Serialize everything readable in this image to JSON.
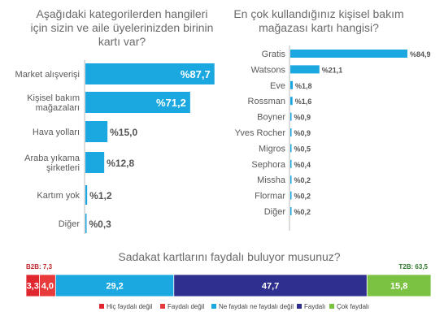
{
  "chart_data": [
    {
      "type": "bar",
      "orientation": "horizontal",
      "title_lines": [
        "Aşağıdaki kategorilerden hangileri",
        "için sizin ve aile üyelerinizden birinin",
        "kartı var?"
      ],
      "categories": [
        [
          "Market alışverişi"
        ],
        [
          "Kişisel bakım",
          "mağazaları"
        ],
        [
          "Hava yolları"
        ],
        [
          "Araba yıkama",
          "şirketleri"
        ],
        [
          "Kartım yok"
        ],
        [
          "Diğer"
        ]
      ],
      "values": [
        87.7,
        71.2,
        15.0,
        12.8,
        1.2,
        0.3
      ],
      "labels": [
        "%87,7",
        "%71,2",
        "%15,0",
        "%12,8",
        "%1,2",
        "%0,3"
      ],
      "xlim": [
        0,
        100
      ],
      "color": "#1ba8e0"
    },
    {
      "type": "bar",
      "orientation": "horizontal",
      "title_lines": [
        "En çok kullandığınız kişisel bakım",
        "mağazası kartı hangisi?"
      ],
      "categories": [
        "Gratis",
        "Watsons",
        "Eve",
        "Rossman",
        "Boyner",
        "Yves Rocher",
        "Migros",
        "Sephora",
        "Missha",
        "Flormar",
        "Diğer"
      ],
      "values": [
        84.9,
        21.1,
        1.8,
        1.6,
        0.9,
        0.9,
        0.5,
        0.4,
        0.2,
        0.2,
        0.2
      ],
      "labels": [
        "%84,9",
        "%21,1",
        "%1,8",
        "%1,6",
        "%0,9",
        "%0,9",
        "%0,5",
        "%0,4",
        "%0,2",
        "%0,2",
        "%0,2"
      ],
      "xlim": [
        0,
        100
      ],
      "color": "#1ba8e0"
    },
    {
      "type": "stacked_bar",
      "title": "Sadakat kartlarını faydalı buluyor musunuz?",
      "b2b_label": "B2B: 7,3",
      "t2b_label": "T2B: 63,5",
      "segments": [
        {
          "name": "Hiç faydalı değil",
          "value": 3.3,
          "label": "3,3",
          "color": "#e0262f"
        },
        {
          "name": "Faydalı değil",
          "value": 4.0,
          "label": "4,0",
          "color": "#e83a3a"
        },
        {
          "name": "Ne faydalı ne faydalı değil",
          "value": 29.2,
          "label": "29,2",
          "color": "#1ba8e0"
        },
        {
          "name": "Faydalı",
          "value": 47.7,
          "label": "47,7",
          "color": "#2e2f8e"
        },
        {
          "name": "Çok faydalı",
          "value": 15.8,
          "label": "15,8",
          "color": "#7cc242"
        }
      ]
    }
  ],
  "colors": {
    "b2b_text": "#c0262c",
    "t2b_text": "#2e7a2e",
    "value_text": "#555555",
    "axis": "#bbbbbb"
  }
}
